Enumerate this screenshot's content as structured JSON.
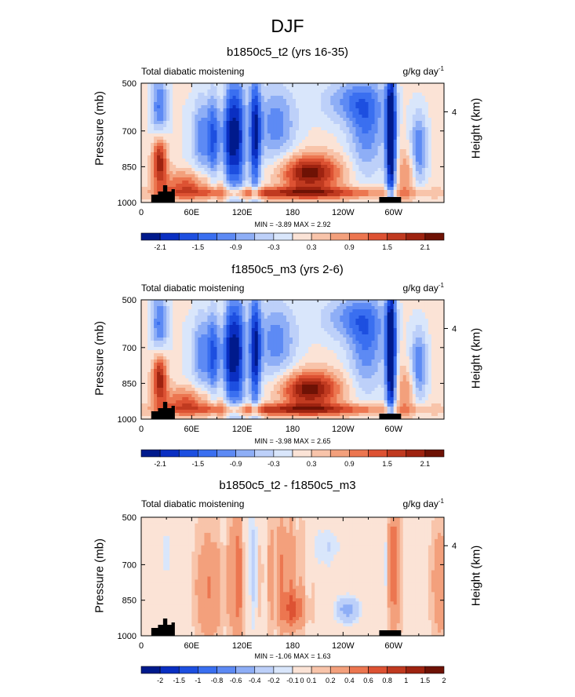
{
  "figure": {
    "title": "DJF"
  },
  "colors": {
    "scale": [
      "#001a8c",
      "#0a2fc2",
      "#1d4fe0",
      "#3a6ff0",
      "#5d8af4",
      "#8eaef6",
      "#bdd0f9",
      "#d9e6fb",
      "#fbe3d6",
      "#f8c4aa",
      "#f3a07c",
      "#ec7650",
      "#dd5233",
      "#c03a20",
      "#9e2310",
      "#6e1205"
    ],
    "land": "#000000"
  },
  "chart_data": [
    {
      "type": "heatmap",
      "title": "b1850c5_t2 (yrs 16-35)",
      "left_string": "Total diabatic moistening",
      "right_string": "g/kg day",
      "right_string_sup": "-1",
      "ylabel": "Pressure (mb)",
      "ylabel_right": "Height (km)",
      "x_ticks": [
        "0",
        "60E",
        "120E",
        "180",
        "120W",
        "60W"
      ],
      "x_tick_lon": [
        0,
        60,
        120,
        180,
        240,
        300
      ],
      "xlim": [
        0,
        360
      ],
      "y_ticks": [
        "500",
        "700",
        "850",
        "1000"
      ],
      "y_tick_p": [
        500,
        700,
        850,
        1000
      ],
      "ylim": [
        500,
        1000
      ],
      "y_right_ticks": [
        "4"
      ],
      "y_right_tick_p": [
        610
      ],
      "stats": "MIN = -3.89  MAX =  2.92",
      "colorbar_labels": [
        "-2.1",
        "-1.5",
        "-0.9",
        "-0.3",
        "0.3",
        "0.9",
        "1.5",
        "2.1"
      ],
      "colorbar_label_slots": [
        1,
        3,
        5,
        7,
        9,
        11,
        13,
        15
      ],
      "field": "mean"
    },
    {
      "type": "heatmap",
      "title": "f1850c5_m3 (yrs 2-6)",
      "left_string": "Total diabatic moistening",
      "right_string": "g/kg day",
      "right_string_sup": "-1",
      "ylabel": "Pressure (mb)",
      "ylabel_right": "Height (km)",
      "x_ticks": [
        "0",
        "60E",
        "120E",
        "180",
        "120W",
        "60W"
      ],
      "x_tick_lon": [
        0,
        60,
        120,
        180,
        240,
        300
      ],
      "xlim": [
        0,
        360
      ],
      "y_ticks": [
        "500",
        "700",
        "850",
        "1000"
      ],
      "y_tick_p": [
        500,
        700,
        850,
        1000
      ],
      "ylim": [
        500,
        1000
      ],
      "y_right_ticks": [
        "4"
      ],
      "y_right_tick_p": [
        610
      ],
      "stats": "MIN = -3.98  MAX =  2.65",
      "colorbar_labels": [
        "-2.1",
        "-1.5",
        "-0.9",
        "-0.3",
        "0.3",
        "0.9",
        "1.5",
        "2.1"
      ],
      "colorbar_label_slots": [
        1,
        3,
        5,
        7,
        9,
        11,
        13,
        15
      ],
      "field": "mean"
    },
    {
      "type": "heatmap",
      "title": "b1850c5_t2 - f1850c5_m3",
      "left_string": "Total diabatic moistening",
      "right_string": "g/kg day",
      "right_string_sup": "-1",
      "ylabel": "Pressure (mb)",
      "ylabel_right": "Height (km)",
      "x_ticks": [
        "0",
        "60E",
        "120E",
        "180",
        "120W",
        "60W"
      ],
      "x_tick_lon": [
        0,
        60,
        120,
        180,
        240,
        300
      ],
      "xlim": [
        0,
        360
      ],
      "y_ticks": [
        "500",
        "700",
        "850",
        "1000"
      ],
      "y_tick_p": [
        500,
        700,
        850,
        1000
      ],
      "ylim": [
        500,
        1000
      ],
      "y_right_ticks": [
        "4"
      ],
      "y_right_tick_p": [
        610
      ],
      "stats": "MIN = -1.06  MAX =  1.63",
      "colorbar_labels": [
        "-2",
        "-1.5",
        "-1",
        "-0.8",
        "-0.6",
        "-0.4",
        "-0.2",
        "-0.1",
        "0",
        "0.1",
        "0.2",
        "0.4",
        "0.6",
        "0.8",
        "1",
        "1.5",
        "2"
      ],
      "colorbar_label_slots": [
        1,
        2,
        3,
        4,
        5,
        6,
        7,
        8,
        8.5,
        9,
        10,
        11,
        12,
        13,
        14,
        15,
        16
      ],
      "field": "diff"
    }
  ]
}
